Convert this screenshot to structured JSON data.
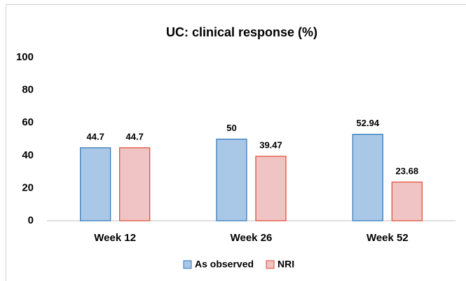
{
  "chart_data": {
    "type": "bar",
    "title": "UC: clinical response (%)",
    "categories": [
      "Week 12",
      "Week 26",
      "Week 52"
    ],
    "series": [
      {
        "name": "As observed",
        "color": "#a9c8e8",
        "values": [
          44.7,
          50,
          52.94
        ]
      },
      {
        "name": "NRI",
        "color": "#f0c4c4",
        "values": [
          44.7,
          39.47,
          23.68
        ]
      }
    ],
    "ylim": [
      0,
      100
    ],
    "yticks": [
      0,
      20,
      40,
      60,
      80,
      100
    ],
    "grid": false,
    "legend": "bottom"
  }
}
